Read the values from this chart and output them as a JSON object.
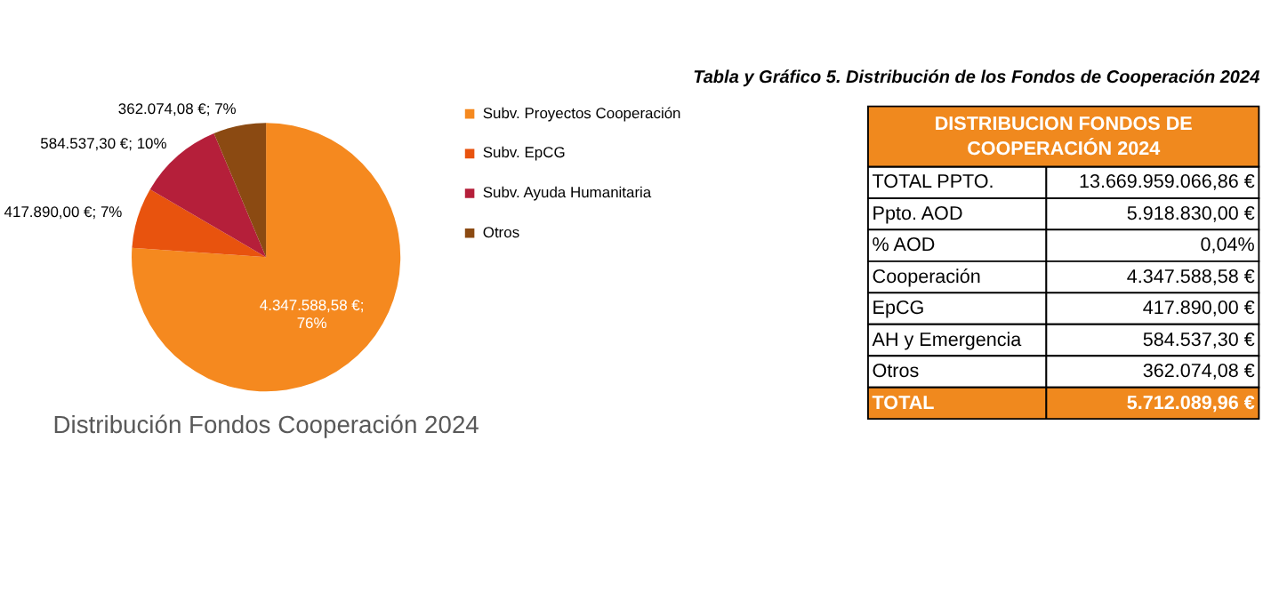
{
  "chart_data": [
    {
      "type": "pie",
      "title": "Distribución Fondos Cooperación 2024",
      "categories": [
        "Subv. Proyectos Cooperación",
        "Subv. EpCG",
        "Subv. Ayuda Humanitaria",
        "Otros"
      ],
      "values": [
        4347588.58,
        417890.0,
        584537.3,
        362074.08
      ],
      "value_labels": [
        "4.347.588,58 €; 76%",
        "417.890,00 €; 7%",
        "584.537,30 €; 10%",
        "362.074,08 €; 7%"
      ],
      "colors": [
        "#f5891f",
        "#e8530e",
        "#b51f3a",
        "#8b4a12"
      ],
      "legend": "right"
    },
    {
      "type": "other",
      "title": "Tabla y Gráfico 5. Distribución de los Fondos de Cooperación 2024",
      "subtitle": "DISTRIBUCION FONDOS DE COOPERACIÓN 2024",
      "categories": [
        "TOTAL PPTO.",
        "Ppto. AOD",
        "% AOD",
        "Cooperación",
        "EpCG",
        "AH y Emergencia",
        "Otros",
        "TOTAL"
      ],
      "value_labels": [
        "13.669.959.066,86 €",
        "5.918.830,00 €",
        "0,04%",
        "4.347.588,58 €",
        "417.890,00 €",
        "584.537,30 €",
        "362.074,08 €",
        "5.712.089,96 €"
      ]
    }
  ]
}
